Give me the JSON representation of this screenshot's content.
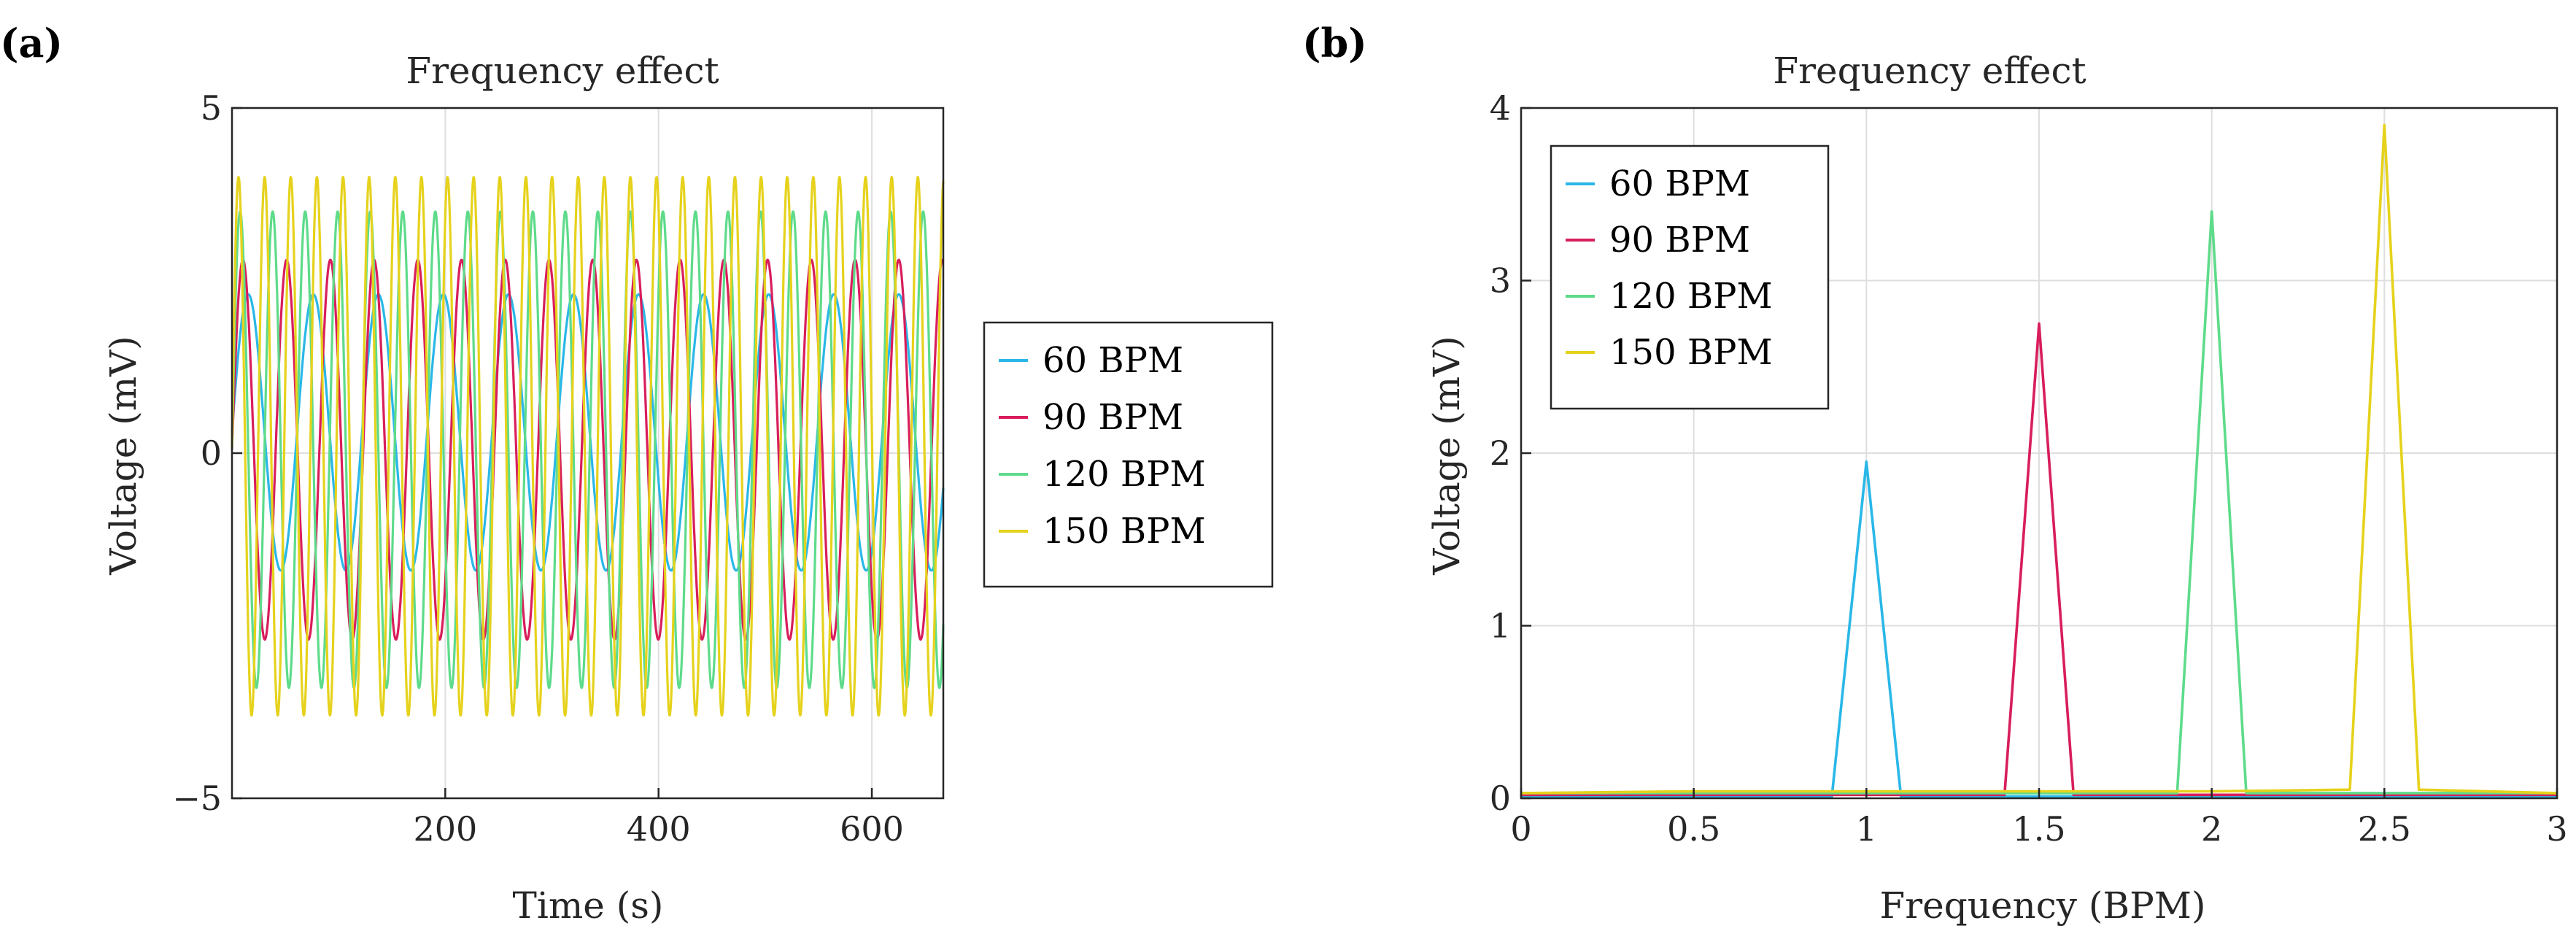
{
  "panel_labels": [
    "(a)",
    "(b)"
  ],
  "chart_data": [
    {
      "type": "line",
      "title": "Frequency effect",
      "xlabel": "Time (s)",
      "ylabel": "Voltage (mV)",
      "xlim": [
        0,
        667
      ],
      "ylim": [
        -5,
        5
      ],
      "xticks": [
        200,
        400,
        600
      ],
      "xtick_labels": [
        "200",
        "400",
        "600"
      ],
      "yticks": [
        -5,
        0,
        5
      ],
      "ytick_labels": [
        "−5",
        "0",
        "5"
      ],
      "grid": true,
      "legend": "outside-right",
      "series": [
        {
          "name": "60 BPM",
          "color": "#2ab7e8",
          "amplitude": 2.0,
          "period_s": 61,
          "offset": 0.3,
          "phase": 0.0
        },
        {
          "name": "90 BPM",
          "color": "#d81e5b",
          "amplitude": 2.75,
          "period_s": 41,
          "offset": 0.05,
          "phase": 0.0
        },
        {
          "name": "120 BPM",
          "color": "#5edb8a",
          "amplitude": 3.45,
          "period_s": 30.5,
          "offset": 0.05,
          "phase": 0.0
        },
        {
          "name": "150 BPM",
          "color": "#e6d21c",
          "amplitude": 3.9,
          "period_s": 24.5,
          "offset": 0.1,
          "phase": 0.0
        }
      ]
    },
    {
      "type": "line",
      "title": "Frequency effect",
      "xlabel": "Frequency (BPM)",
      "ylabel": "Voltage (mV)",
      "xlim": [
        0,
        3
      ],
      "ylim": [
        0,
        4
      ],
      "xticks": [
        0,
        0.5,
        1,
        1.5,
        2,
        2.5,
        3
      ],
      "xtick_labels": [
        "0",
        "0.5",
        "1",
        "1.5",
        "2",
        "2.5",
        "3"
      ],
      "yticks": [
        0,
        1,
        2,
        3,
        4
      ],
      "ytick_labels": [
        "0",
        "1",
        "2",
        "3",
        "4"
      ],
      "grid": true,
      "legend": "top-left",
      "series": [
        {
          "name": "60 BPM",
          "color": "#2ab7e8",
          "x": [
            0,
            0.9,
            1.0,
            1.1,
            3
          ],
          "y": [
            0.01,
            0.01,
            1.95,
            0.01,
            0.01
          ]
        },
        {
          "name": "90 BPM",
          "color": "#d81e5b",
          "x": [
            0,
            1.4,
            1.5,
            1.6,
            3
          ],
          "y": [
            0.02,
            0.02,
            2.75,
            0.02,
            0.02
          ]
        },
        {
          "name": "120 BPM",
          "color": "#5edb8a",
          "x": [
            0,
            1.9,
            2.0,
            2.1,
            3
          ],
          "y": [
            0.03,
            0.03,
            3.4,
            0.03,
            0.03
          ]
        },
        {
          "name": "150 BPM",
          "color": "#e6d21c",
          "x": [
            0,
            0.5,
            2.0,
            2.4,
            2.5,
            2.6,
            3
          ],
          "y": [
            0.03,
            0.04,
            0.04,
            0.05,
            3.9,
            0.05,
            0.03
          ]
        }
      ]
    }
  ]
}
